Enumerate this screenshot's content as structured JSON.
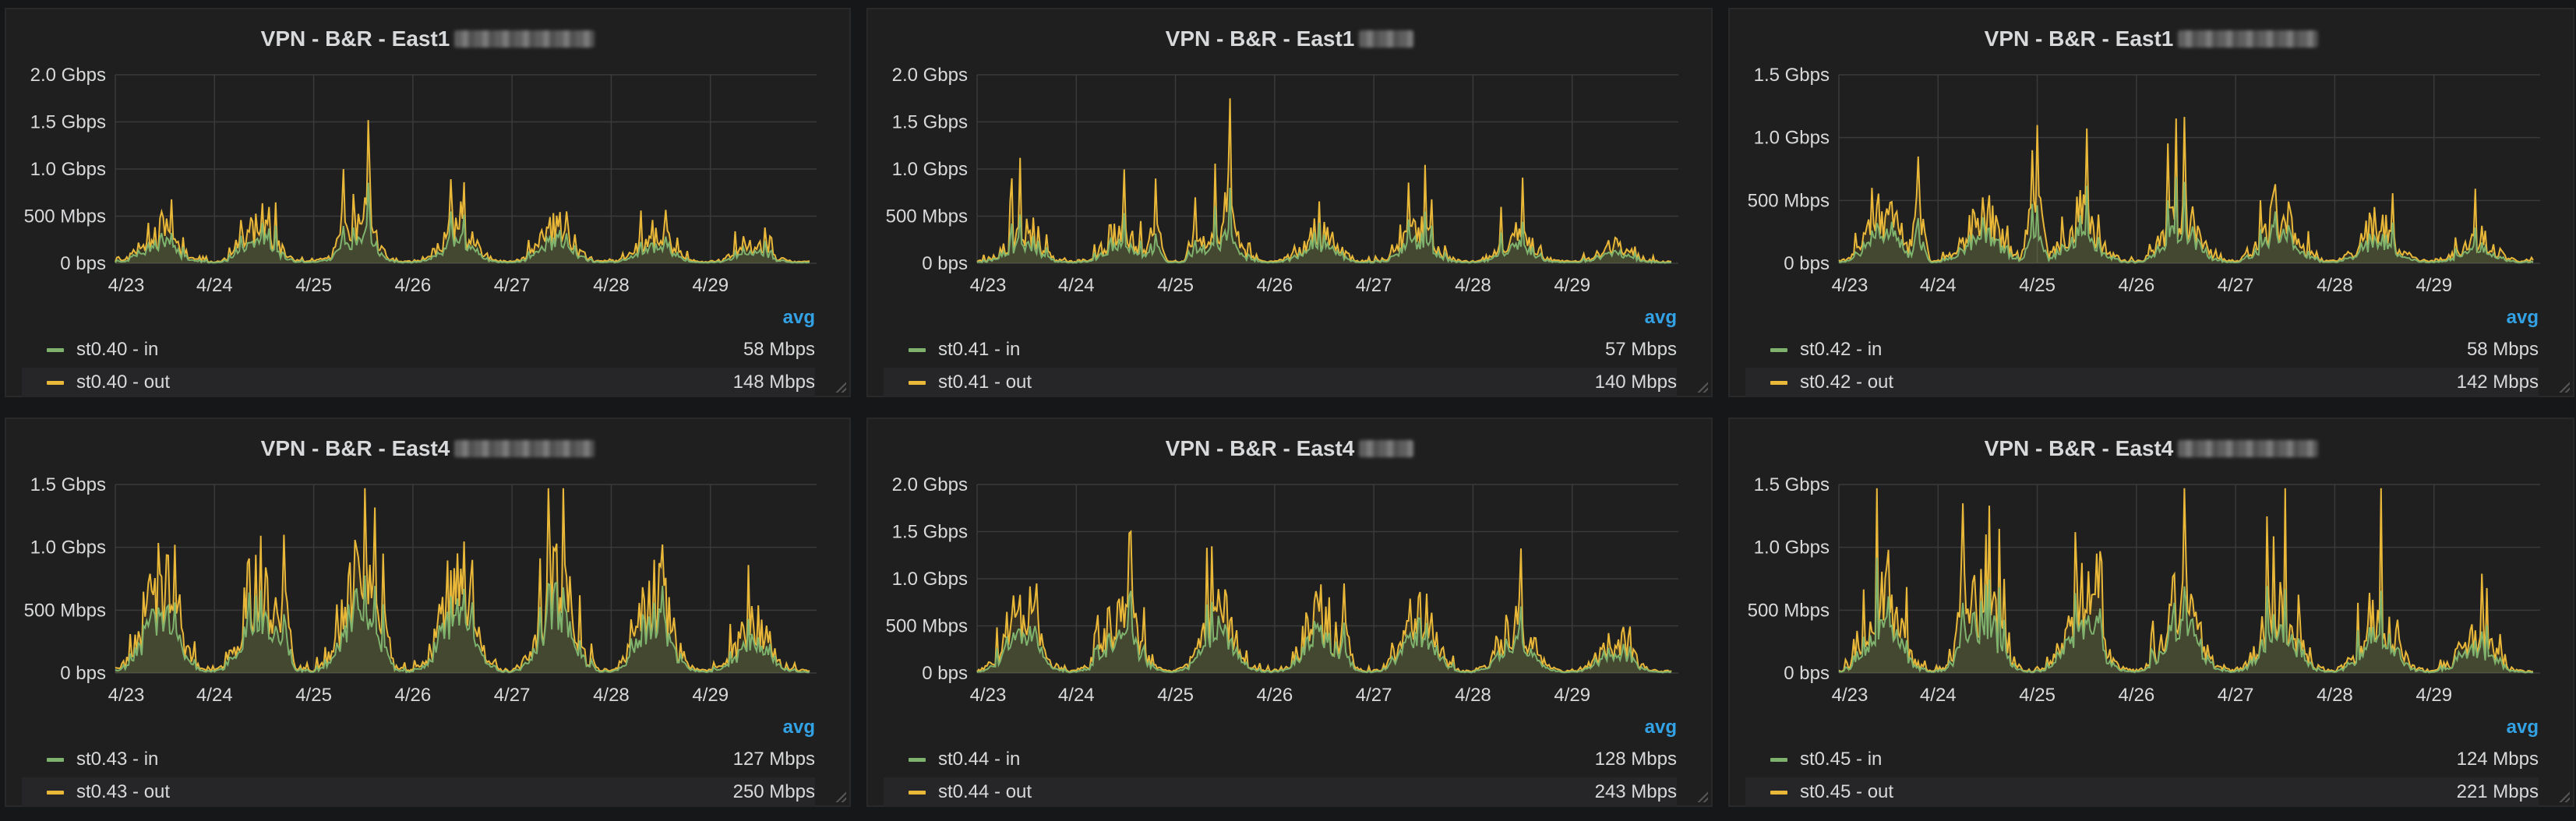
{
  "colors": {
    "in": "#7eb26d",
    "out": "#eab839",
    "legend_header": "#33a2e5",
    "panel_bg": "#1f1f20"
  },
  "legend_header": "avg",
  "chart_data": [
    {
      "type": "line",
      "title": "VPN - B&R - East1",
      "ylim": [
        0,
        2.0
      ],
      "y_ticks": [
        "0 bps",
        "500 Mbps",
        "1.0 Gbps",
        "1.5 Gbps",
        "2.0 Gbps"
      ],
      "x_ticks": [
        "4/23",
        "4/24",
        "4/25",
        "4/26",
        "4/27",
        "4/28",
        "4/29"
      ],
      "series": [
        {
          "name": "st0.40 - in",
          "avg": "58 Mbps"
        },
        {
          "name": "st0.40 - out",
          "avg": "148 Mbps"
        }
      ],
      "out_peaks": [
        {
          "x": 2.3,
          "y": 1.0
        },
        {
          "x": 2.55,
          "y": 1.52
        },
        {
          "x": 4.55,
          "y": 0.55
        }
      ],
      "out_base": 0.18,
      "in_base": 0.08,
      "seed": 11
    },
    {
      "type": "line",
      "title": "VPN - B&R - East1",
      "ylim": [
        0,
        2.0
      ],
      "y_ticks": [
        "0 bps",
        "500 Mbps",
        "1.0 Gbps",
        "1.5 Gbps",
        "2.0 Gbps"
      ],
      "x_ticks": [
        "4/23",
        "4/24",
        "4/25",
        "4/26",
        "4/27",
        "4/28",
        "4/29"
      ],
      "series": [
        {
          "name": "st0.41 - in",
          "avg": "57 Mbps"
        },
        {
          "name": "st0.41 - out",
          "avg": "140 Mbps"
        }
      ],
      "out_peaks": [
        {
          "x": 2.55,
          "y": 1.75
        },
        {
          "x": 1.8,
          "y": 0.9
        },
        {
          "x": 2.2,
          "y": 0.7
        }
      ],
      "out_base": 0.17,
      "in_base": 0.07,
      "seed": 23
    },
    {
      "type": "line",
      "title": "VPN - B&R - East1",
      "ylim": [
        0,
        1.5
      ],
      "y_ticks": [
        "0 bps",
        "500 Mbps",
        "1.0 Gbps",
        "1.5 Gbps"
      ],
      "x_ticks": [
        "4/23",
        "4/24",
        "4/25",
        "4/26",
        "4/27",
        "4/28",
        "4/29"
      ],
      "series": [
        {
          "name": "st0.42 - in",
          "avg": "58 Mbps"
        },
        {
          "name": "st0.42 - out",
          "avg": "142 Mbps"
        }
      ],
      "out_peaks": [
        {
          "x": 2.0,
          "y": 1.1
        },
        {
          "x": 0.8,
          "y": 0.85
        },
        {
          "x": 1.95,
          "y": 0.9
        }
      ],
      "out_base": 0.2,
      "in_base": 0.08,
      "seed": 37
    },
    {
      "type": "line",
      "title": "VPN - B&R - East4",
      "ylim": [
        0,
        1.5
      ],
      "y_ticks": [
        "0 bps",
        "500 Mbps",
        "1.0 Gbps",
        "1.5 Gbps"
      ],
      "x_ticks": [
        "4/23",
        "4/24",
        "4/25",
        "4/26",
        "4/27",
        "4/28",
        "4/29"
      ],
      "series": [
        {
          "name": "st0.43 - in",
          "avg": "127 Mbps"
        },
        {
          "name": "st0.43 - out",
          "avg": "250 Mbps"
        }
      ],
      "out_peaks": [
        {
          "x": 0.6,
          "y": 1.02
        },
        {
          "x": 1.7,
          "y": 1.1
        },
        {
          "x": 2.7,
          "y": 0.95
        },
        {
          "x": 3.6,
          "y": 0.9
        }
      ],
      "out_base": 0.38,
      "in_base": 0.18,
      "seed": 41
    },
    {
      "type": "line",
      "title": "VPN - B&R - East4",
      "ylim": [
        0,
        2.0
      ],
      "y_ticks": [
        "0 bps",
        "500 Mbps",
        "1.0 Gbps",
        "1.5 Gbps",
        "2.0 Gbps"
      ],
      "x_ticks": [
        "4/23",
        "4/24",
        "4/25",
        "4/26",
        "4/27",
        "4/28",
        "4/29"
      ],
      "series": [
        {
          "name": "st0.44 - in",
          "avg": "128 Mbps"
        },
        {
          "name": "st0.44 - out",
          "avg": "243 Mbps"
        }
      ],
      "out_peaks": [
        {
          "x": 1.55,
          "y": 1.5
        },
        {
          "x": 0.6,
          "y": 0.95
        },
        {
          "x": 3.7,
          "y": 0.95
        }
      ],
      "out_base": 0.32,
      "in_base": 0.16,
      "seed": 53
    },
    {
      "type": "line",
      "title": "VPN - B&R - East4",
      "ylim": [
        0,
        1.5
      ],
      "y_ticks": [
        "0 bps",
        "500 Mbps",
        "1.0 Gbps",
        "1.5 Gbps"
      ],
      "x_ticks": [
        "4/23",
        "4/24",
        "4/25",
        "4/26",
        "4/27",
        "4/28",
        "4/29"
      ],
      "series": [
        {
          "name": "st0.45 - in",
          "avg": "124 Mbps"
        },
        {
          "name": "st0.45 - out",
          "avg": "221 Mbps"
        }
      ],
      "out_peaks": [
        {
          "x": 1.25,
          "y": 1.35
        },
        {
          "x": 0.5,
          "y": 0.98
        },
        {
          "x": 3.5,
          "y": 0.9
        },
        {
          "x": 2.6,
          "y": 0.95
        }
      ],
      "out_base": 0.3,
      "in_base": 0.15,
      "seed": 67
    }
  ]
}
